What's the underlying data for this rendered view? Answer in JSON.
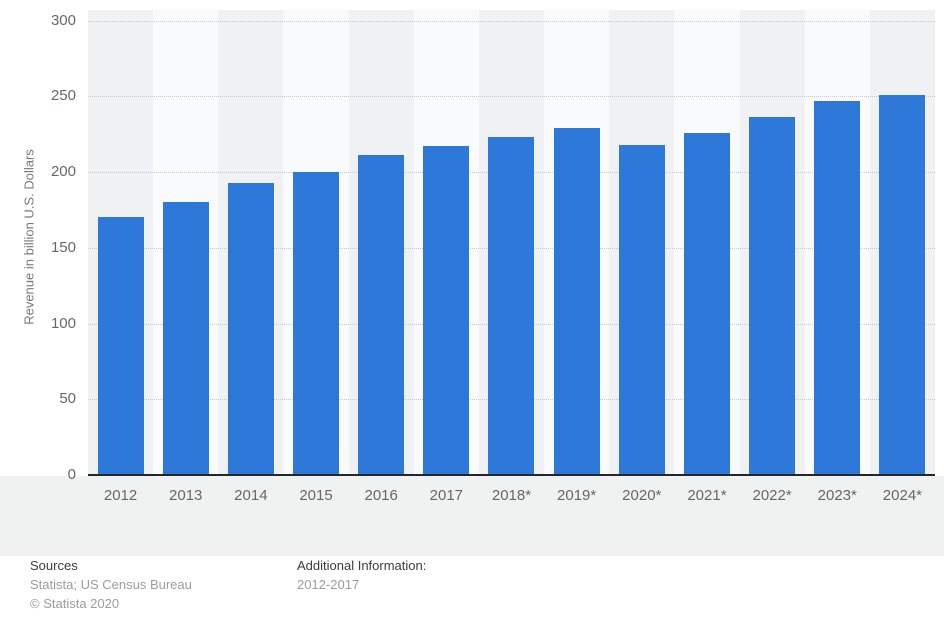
{
  "chart_data": {
    "type": "bar",
    "title": "",
    "xlabel": "",
    "ylabel": "Revenue in billion U.S. Dollars",
    "categories": [
      "2012",
      "2013",
      "2014",
      "2015",
      "2016",
      "2017",
      "2018*",
      "2019*",
      "2020*",
      "2021*",
      "2022*",
      "2023*",
      "2024*"
    ],
    "values": [
      170,
      180,
      193,
      200,
      211,
      217,
      223,
      229,
      218,
      226,
      236,
      247,
      251
    ],
    "ylim": [
      0,
      300
    ],
    "yticks": [
      0,
      50,
      100,
      150,
      200,
      250,
      300
    ],
    "grid": "horizontal-dotted",
    "legend": "none",
    "bar_color": "#2d78d8"
  },
  "footer": {
    "sources_heading": "Sources",
    "sources_line": "Statista; US Census Bureau",
    "copyright": "© Statista 2020",
    "additional_heading": "Additional Information:",
    "additional_line": "2012-2017"
  }
}
